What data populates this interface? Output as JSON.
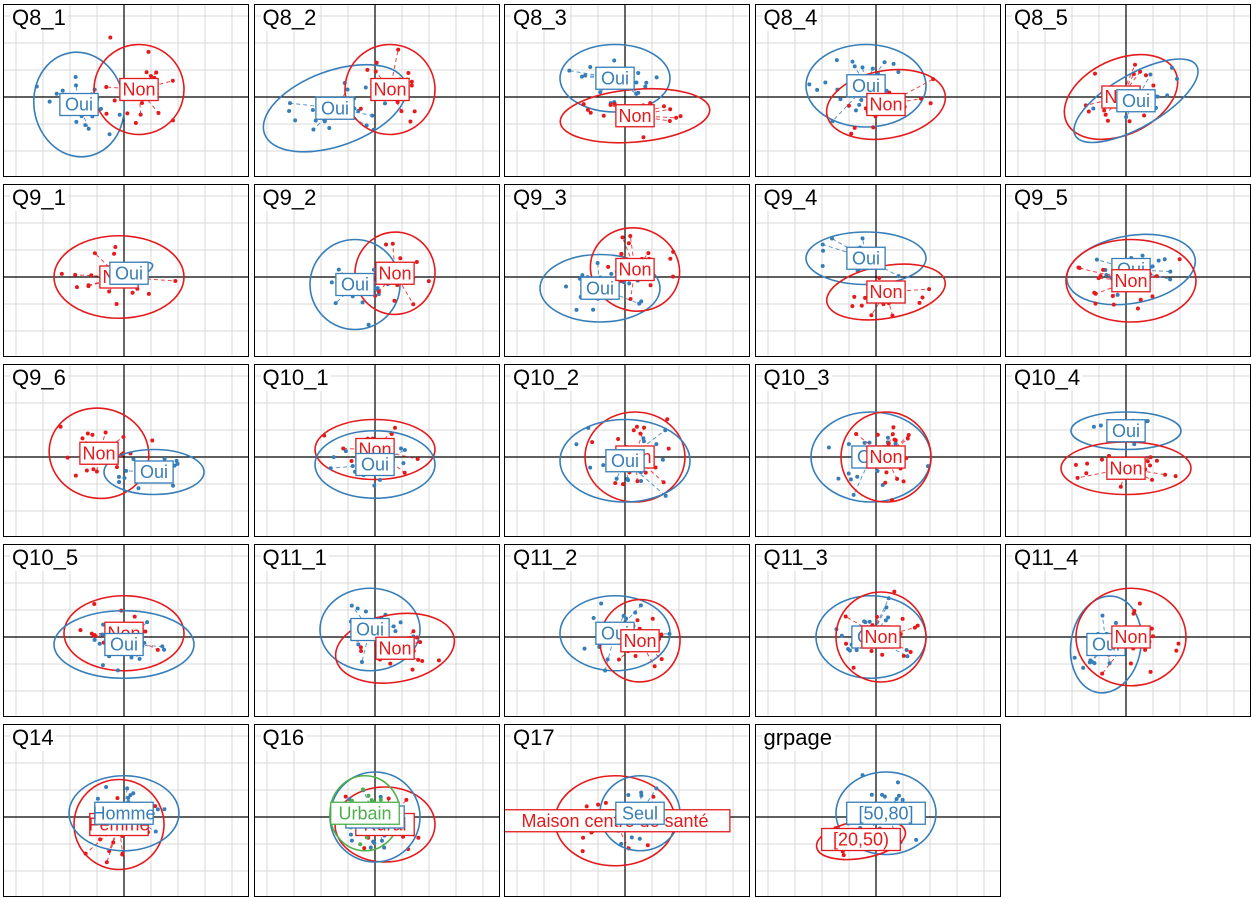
{
  "colors": {
    "red": "#E41A1C",
    "blue": "#377EB8",
    "green": "#4DAF4A",
    "grid": "#D9D9D9",
    "axis": "#000000"
  },
  "chart_data": {
    "type": "scatter",
    "description_note": "",
    "panels": [
      {
        "title": "Q8_1",
        "groups": [
          {
            "label": "Oui",
            "color": "blue",
            "center": [
              -0.45,
              -0.1
            ],
            "radii": [
              0.45,
              0.7
            ],
            "angle": -10
          },
          {
            "label": "Non",
            "color": "red",
            "center": [
              0.15,
              0.1
            ],
            "radii": [
              0.45,
              0.6
            ],
            "angle": 15
          }
        ]
      },
      {
        "title": "Q8_2",
        "groups": [
          {
            "label": "Oui",
            "color": "blue",
            "center": [
              -0.4,
              -0.15
            ],
            "radii": [
              0.75,
              0.5
            ],
            "angle": -20
          },
          {
            "label": "Non",
            "color": "red",
            "center": [
              0.15,
              0.1
            ],
            "radii": [
              0.45,
              0.6
            ],
            "angle": 15
          }
        ]
      },
      {
        "title": "Q8_3",
        "groups": [
          {
            "label": "Oui",
            "color": "blue",
            "center": [
              -0.1,
              0.25
            ],
            "radii": [
              0.55,
              0.45
            ],
            "angle": 0
          },
          {
            "label": "Non",
            "color": "red",
            "center": [
              0.1,
              -0.25
            ],
            "radii": [
              0.75,
              0.35
            ],
            "angle": -5
          }
        ]
      },
      {
        "title": "Q8_4",
        "groups": [
          {
            "label": "Oui",
            "color": "blue",
            "center": [
              -0.1,
              0.15
            ],
            "radii": [
              0.6,
              0.55
            ],
            "angle": 0
          },
          {
            "label": "Non",
            "color": "red",
            "center": [
              0.1,
              -0.1
            ],
            "radii": [
              0.6,
              0.45
            ],
            "angle": -10
          }
        ]
      },
      {
        "title": "Q8_5",
        "groups": [
          {
            "label": "Non",
            "color": "red",
            "center": [
              -0.05,
              0.0
            ],
            "radii": [
              0.6,
              0.5
            ],
            "angle": -25
          },
          {
            "label": "Oui",
            "color": "blue",
            "center": [
              0.1,
              -0.05
            ],
            "radii": [
              0.7,
              0.35
            ],
            "angle": -30
          }
        ]
      },
      {
        "title": "Q9_1",
        "groups": [
          {
            "label": "Non",
            "color": "red",
            "center": [
              -0.05,
              0.0
            ],
            "radii": [
              0.65,
              0.55
            ],
            "angle": 0
          },
          {
            "label": "Oui",
            "color": "blue",
            "center": [
              0.05,
              0.05
            ],
            "radii": [
              0.25,
              0.1
            ],
            "angle": -20
          }
        ]
      },
      {
        "title": "Q9_2",
        "groups": [
          {
            "label": "Oui",
            "color": "blue",
            "center": [
              -0.2,
              -0.1
            ],
            "radii": [
              0.45,
              0.6
            ],
            "angle": 0
          },
          {
            "label": "Non",
            "color": "red",
            "center": [
              0.2,
              0.05
            ],
            "radii": [
              0.4,
              0.55
            ],
            "angle": 10
          }
        ]
      },
      {
        "title": "Q9_3",
        "groups": [
          {
            "label": "Oui",
            "color": "blue",
            "center": [
              -0.25,
              -0.15
            ],
            "radii": [
              0.6,
              0.45
            ],
            "angle": 0
          },
          {
            "label": "Non",
            "color": "red",
            "center": [
              0.1,
              0.1
            ],
            "radii": [
              0.45,
              0.55
            ],
            "angle": 20
          }
        ]
      },
      {
        "title": "Q9_4",
        "groups": [
          {
            "label": "Oui",
            "color": "blue",
            "center": [
              -0.1,
              0.25
            ],
            "radii": [
              0.6,
              0.35
            ],
            "angle": 0
          },
          {
            "label": "Non",
            "color": "red",
            "center": [
              0.1,
              -0.2
            ],
            "radii": [
              0.6,
              0.35
            ],
            "angle": -10
          }
        ]
      },
      {
        "title": "Q9_5",
        "groups": [
          {
            "label": "Oui",
            "color": "blue",
            "center": [
              0.05,
              0.1
            ],
            "radii": [
              0.65,
              0.45
            ],
            "angle": -10
          },
          {
            "label": "Non",
            "color": "red",
            "center": [
              0.05,
              -0.05
            ],
            "radii": [
              0.65,
              0.55
            ],
            "angle": 0
          }
        ]
      },
      {
        "title": "Q9_6",
        "groups": [
          {
            "label": "Non",
            "color": "red",
            "center": [
              -0.25,
              0.05
            ],
            "radii": [
              0.5,
              0.6
            ],
            "angle": 10
          },
          {
            "label": "Oui",
            "color": "blue",
            "center": [
              0.3,
              -0.2
            ],
            "radii": [
              0.5,
              0.3
            ],
            "angle": 0
          }
        ]
      },
      {
        "title": "Q10_1",
        "groups": [
          {
            "label": "Non",
            "color": "red",
            "center": [
              0.0,
              0.1
            ],
            "radii": [
              0.6,
              0.4
            ],
            "angle": 0
          },
          {
            "label": "Oui",
            "color": "blue",
            "center": [
              0.0,
              -0.1
            ],
            "radii": [
              0.6,
              0.45
            ],
            "angle": 0
          }
        ]
      },
      {
        "title": "Q10_2",
        "groups": [
          {
            "label": "Non",
            "color": "red",
            "center": [
              0.1,
              0.0
            ],
            "radii": [
              0.5,
              0.6
            ],
            "angle": 0
          },
          {
            "label": "Oui",
            "color": "blue",
            "center": [
              0.0,
              -0.05
            ],
            "radii": [
              0.65,
              0.55
            ],
            "angle": 0
          }
        ]
      },
      {
        "title": "Q10_3",
        "groups": [
          {
            "label": "Oui",
            "color": "blue",
            "center": [
              -0.05,
              0.0
            ],
            "radii": [
              0.6,
              0.6
            ],
            "angle": 0
          },
          {
            "label": "Non",
            "color": "red",
            "center": [
              0.1,
              0.0
            ],
            "radii": [
              0.45,
              0.6
            ],
            "angle": 0
          }
        ]
      },
      {
        "title": "Q10_4",
        "groups": [
          {
            "label": "Oui",
            "color": "blue",
            "center": [
              0.0,
              0.35
            ],
            "radii": [
              0.55,
              0.25
            ],
            "angle": 0
          },
          {
            "label": "Non",
            "color": "red",
            "center": [
              0.0,
              -0.15
            ],
            "radii": [
              0.65,
              0.35
            ],
            "angle": 0
          }
        ]
      },
      {
        "title": "Q10_5",
        "groups": [
          {
            "label": "Non",
            "color": "red",
            "center": [
              0.0,
              0.05
            ],
            "radii": [
              0.6,
              0.5
            ],
            "angle": 0
          },
          {
            "label": "Oui",
            "color": "blue",
            "center": [
              0.0,
              -0.1
            ],
            "radii": [
              0.7,
              0.45
            ],
            "angle": 0
          }
        ]
      },
      {
        "title": "Q11_1",
        "groups": [
          {
            "label": "Oui",
            "color": "blue",
            "center": [
              -0.05,
              0.1
            ],
            "radii": [
              0.5,
              0.55
            ],
            "angle": 0
          },
          {
            "label": "Non",
            "color": "red",
            "center": [
              0.2,
              -0.15
            ],
            "radii": [
              0.6,
              0.45
            ],
            "angle": -10
          }
        ]
      },
      {
        "title": "Q11_2",
        "groups": [
          {
            "label": "Oui",
            "color": "blue",
            "center": [
              -0.1,
              0.05
            ],
            "radii": [
              0.55,
              0.5
            ],
            "angle": 0
          },
          {
            "label": "Non",
            "color": "red",
            "center": [
              0.15,
              -0.05
            ],
            "radii": [
              0.4,
              0.55
            ],
            "angle": 10
          }
        ]
      },
      {
        "title": "Q11_3",
        "groups": [
          {
            "label": "Oui",
            "color": "blue",
            "center": [
              -0.05,
              0.0
            ],
            "radii": [
              0.55,
              0.55
            ],
            "angle": 0
          },
          {
            "label": "Non",
            "color": "red",
            "center": [
              0.05,
              0.0
            ],
            "radii": [
              0.45,
              0.6
            ],
            "angle": 0
          }
        ]
      },
      {
        "title": "Q11_4",
        "groups": [
          {
            "label": "Oui",
            "color": "blue",
            "center": [
              -0.2,
              -0.1
            ],
            "radii": [
              0.35,
              0.65
            ],
            "angle": 10
          },
          {
            "label": "Non",
            "color": "red",
            "center": [
              0.05,
              0.0
            ],
            "radii": [
              0.55,
              0.65
            ],
            "angle": 0
          }
        ]
      },
      {
        "title": "Q14",
        "groups": [
          {
            "label": "Femme",
            "color": "red",
            "center": [
              -0.05,
              -0.1
            ],
            "radii": [
              0.45,
              0.6
            ],
            "angle": 0
          },
          {
            "label": "Homme",
            "color": "blue",
            "center": [
              0.0,
              0.05
            ],
            "radii": [
              0.55,
              0.5
            ],
            "angle": 0
          }
        ]
      },
      {
        "title": "Q16",
        "groups": [
          {
            "label": "Rural",
            "color": "red",
            "center": [
              0.1,
              -0.1
            ],
            "radii": [
              0.5,
              0.5
            ],
            "angle": 0
          },
          {
            "label": "Rural",
            "color": "blue",
            "center": [
              0.0,
              0.0
            ],
            "radii": [
              0.45,
              0.6
            ],
            "angle": 0
          },
          {
            "label": "Urbain",
            "color": "green",
            "center": [
              -0.1,
              0.05
            ],
            "radii": [
              0.35,
              0.5
            ],
            "angle": 0
          }
        ]
      },
      {
        "title": "Q17",
        "groups": [
          {
            "label": "Maison centre de santé",
            "color": "red",
            "center": [
              -0.1,
              -0.05
            ],
            "radii": [
              0.6,
              0.6
            ],
            "angle": 0
          },
          {
            "label": "Seul",
            "color": "blue",
            "center": [
              0.15,
              0.05
            ],
            "radii": [
              0.4,
              0.5
            ],
            "angle": 0
          }
        ]
      },
      {
        "title": "grpage",
        "groups": [
          {
            "label": "[50,80]",
            "color": "blue",
            "center": [
              0.1,
              0.05
            ],
            "radii": [
              0.5,
              0.55
            ],
            "angle": 0
          },
          {
            "label": "[20,50)",
            "color": "red",
            "center": [
              -0.15,
              -0.3
            ],
            "radii": [
              0.45,
              0.25
            ],
            "angle": -10
          }
        ]
      }
    ]
  }
}
